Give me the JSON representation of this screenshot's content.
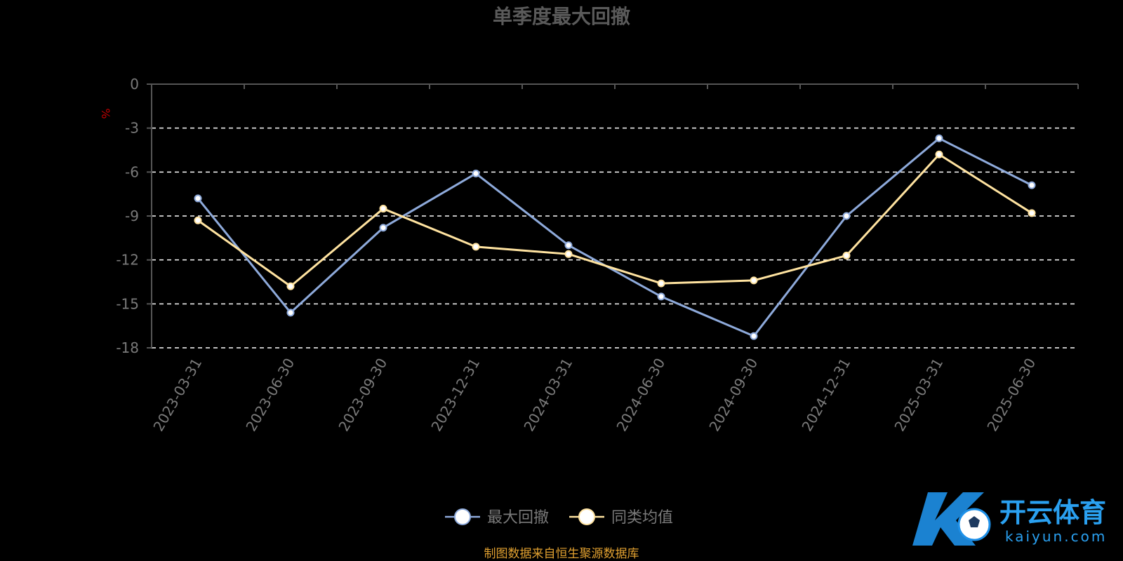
{
  "chart_data": {
    "type": "line",
    "title": "单季度最大回撤",
    "unit": "%",
    "categories": [
      "2023-03-31",
      "2023-06-30",
      "2023-09-30",
      "2023-12-31",
      "2024-03-31",
      "2024-06-30",
      "2024-09-30",
      "2024-12-31",
      "2025-03-31",
      "2025-06-30"
    ],
    "series": [
      {
        "name": "最大回撤",
        "color": "#8eaadb",
        "values": [
          -7.8,
          -15.6,
          -9.8,
          -6.1,
          -11.0,
          -14.5,
          -17.2,
          -9.0,
          -3.7,
          -6.9
        ]
      },
      {
        "name": "同类均值",
        "color": "#ffe3a0",
        "values": [
          -9.3,
          -13.8,
          -8.5,
          -11.1,
          -11.6,
          -13.6,
          -13.4,
          -11.7,
          -4.8,
          -8.8
        ]
      }
    ],
    "ylim": [
      -18,
      0
    ],
    "yticks": [
      0,
      -3,
      -6,
      -9,
      -12,
      -15,
      -18
    ],
    "grid": true,
    "legend_position": "bottom-center"
  },
  "source_note": "制图数据来自恒生聚源数据库",
  "watermark": {
    "cn": "开云体育",
    "en": "kaiyun.com"
  }
}
